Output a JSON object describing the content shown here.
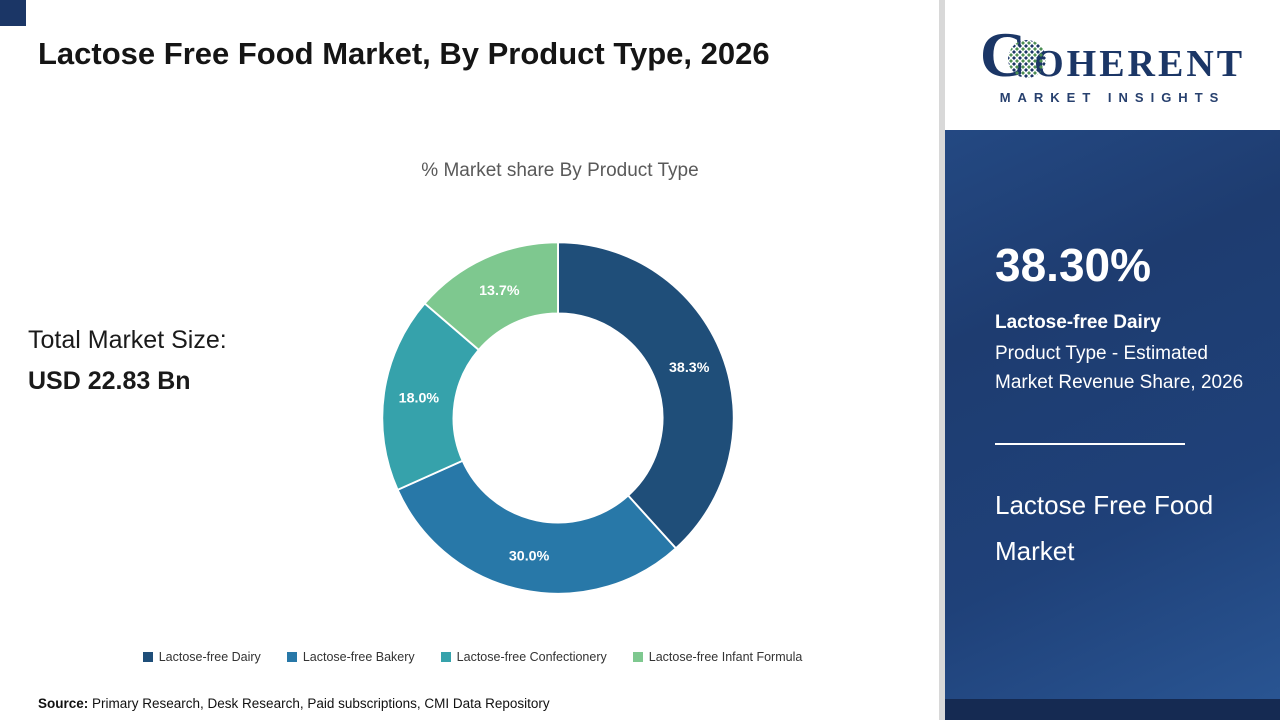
{
  "header": {
    "title": "Lactose Free Food Market, By Product Type, 2026"
  },
  "chart_data": {
    "type": "pie",
    "donut": true,
    "title": "% Market share By Product Type",
    "categories": [
      "Lactose-free Dairy",
      "Lactose-free Bakery",
      "Lactose-free Confectionery",
      "Lactose-free Infant Formula"
    ],
    "values": [
      38.3,
      30.0,
      18.0,
      13.7
    ],
    "labels": [
      "38.3%",
      "30.0%",
      "18.0%",
      "13.7%"
    ],
    "colors": [
      "#1f4e79",
      "#2878a8",
      "#36a2ab",
      "#7ec88f"
    ],
    "legend_position": "bottom",
    "start_angle_deg": 0,
    "direction": "clockwise"
  },
  "market": {
    "total_label": "Total Market Size:",
    "total_value": "USD 22.83 Bn"
  },
  "source": {
    "label": "Source:",
    "text": " Primary Research, Desk Research, Paid subscriptions, CMI Data Repository"
  },
  "sidebar": {
    "stat_value": "38.30%",
    "stat_title": "Lactose-free Dairy",
    "stat_desc": "Product Type - Estimated Market Revenue Share, 2026",
    "market_name": "Lactose Free Food Market"
  },
  "logo": {
    "brand_c": "C",
    "brand_rest": "OHERENT",
    "tagline": "MARKET INSIGHTS"
  }
}
